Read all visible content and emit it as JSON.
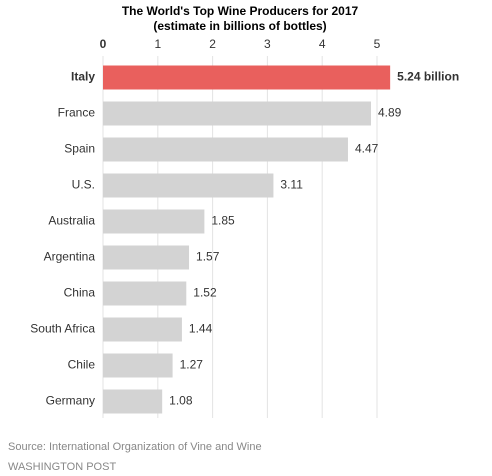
{
  "chart_data": {
    "type": "bar",
    "orientation": "horizontal",
    "title": "The World's Top Wine Producers for 2017",
    "subtitle": "(estimate in billions of bottles)",
    "categories": [
      "Italy",
      "France",
      "Spain",
      "U.S.",
      "Australia",
      "Argentina",
      "China",
      "South Africa",
      "Chile",
      "Germany"
    ],
    "values": [
      5.24,
      4.89,
      4.47,
      3.11,
      1.85,
      1.57,
      1.52,
      1.44,
      1.27,
      1.08
    ],
    "value_labels": [
      "5.24 billion",
      "4.89",
      "4.47",
      "3.11",
      "1.85",
      "1.57",
      "1.52",
      "1.44",
      "1.27",
      "1.08"
    ],
    "color": "#d3d3d3",
    "colors": [
      "#e9605d",
      "#d3d3d3",
      "#d3d3d3",
      "#d3d3d3",
      "#d3d3d3",
      "#d3d3d3",
      "#d3d3d3",
      "#d3d3d3",
      "#d3d3d3",
      "#d3d3d3"
    ],
    "xlim": [
      0,
      5
    ],
    "xticks": [
      0,
      1,
      2,
      3,
      4,
      5
    ],
    "grid": true,
    "source": "Source: International Organization of Vine and Wine",
    "credit": "WASHINGTON POST"
  }
}
